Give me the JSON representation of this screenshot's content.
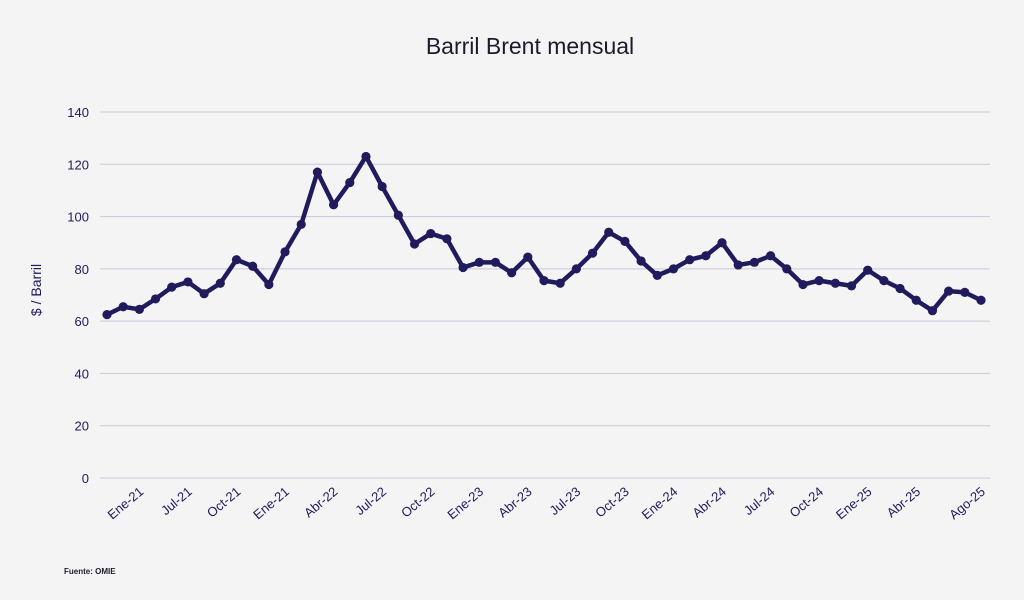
{
  "chart_data": {
    "type": "line",
    "title": "Barril Brent mensual",
    "ylabel": "$ / Barril",
    "source": "Fuente: OMIE",
    "ylim": [
      0,
      140
    ],
    "yticks": [
      0,
      20,
      40,
      60,
      80,
      100,
      120,
      140
    ],
    "grid": true,
    "line_color": "#1f1b5c",
    "grid_color": "#c9c7dc",
    "text_color": "#1f1b5c",
    "x_labels": [
      "Ene-21",
      "Jul-21",
      "Oct-21",
      "Ene-21",
      "Abr-22",
      "Jul-22",
      "Oct-22",
      "Ene-23",
      "Abr-23",
      "Jul-23",
      "Oct-23",
      "Ene-24",
      "Abr-24",
      "Jul-24",
      "Oct-24",
      "Ene-25",
      "Abr-25",
      "Ago-25"
    ],
    "x_label_positions": [
      2,
      5,
      8,
      11,
      14,
      17,
      20,
      23,
      26,
      29,
      32,
      35,
      38,
      41,
      44,
      47,
      50,
      54
    ],
    "series": [
      {
        "values": [
          62.5,
          65.5,
          64.5,
          68.5,
          73,
          75,
          70.5,
          74.5,
          83.5,
          81,
          74,
          86.5,
          97,
          117,
          104.5,
          113,
          123,
          111.5,
          100.5,
          89.5,
          93.5,
          91.5,
          80.5,
          82.5,
          82.5,
          78.5,
          84.5,
          75.5,
          74.5,
          80,
          86,
          94,
          90.5,
          83,
          77.5,
          80,
          83.5,
          85,
          90,
          81.5,
          82.5,
          85,
          80,
          74,
          75.5,
          74.5,
          73.5,
          79.5,
          75.5,
          72.5,
          68,
          64,
          71.5,
          71,
          68
        ]
      }
    ]
  }
}
